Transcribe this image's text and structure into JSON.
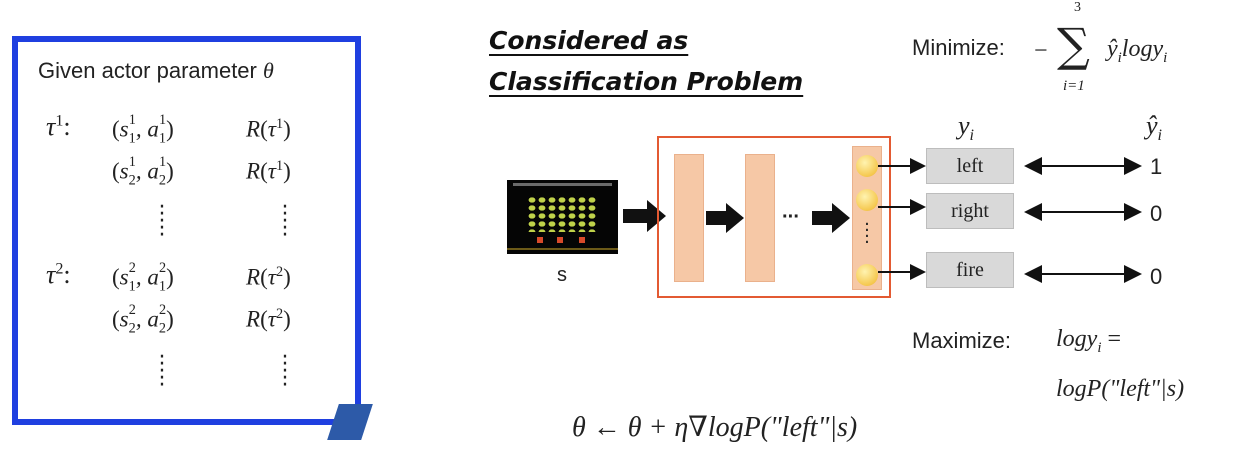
{
  "left_box": {
    "header": "Given actor parameter",
    "theta": "θ",
    "tau1": "τ",
    "tau1_sup": "1",
    "tau2": "τ",
    "tau2_sup": "2",
    "colon": ":",
    "rows": [
      {
        "pair": "(s",
        "return": "R(τ"
      },
      {
        "pair": "(s",
        "return": "R(τ"
      }
    ]
  },
  "title": {
    "line1": "Considered as",
    "line2": "Classification Problem"
  },
  "minimize": {
    "label": "Minimize:",
    "minus": "−",
    "sum": "∑",
    "upper": "3",
    "lower": "i=1",
    "term": "ŷ",
    "term_i": "i",
    "log": "logy",
    "log_i": "i"
  },
  "input_label": "s",
  "ellipsis": "···",
  "columns": {
    "y": "y",
    "y_sub": "i",
    "yhat": "ŷ",
    "yhat_sub": "i"
  },
  "classes": [
    {
      "label": "left",
      "target": "1"
    },
    {
      "label": "right",
      "target": "0"
    },
    {
      "label": "fire",
      "target": "0"
    }
  ],
  "maximize": {
    "label": "Maximize:",
    "line1": "logy",
    "line1_sub": "i",
    "line1_eq": " =",
    "line2": "logP(\"left\"|s)"
  },
  "update_rule": "θ ← θ + η∇logP(\"left\"|s)",
  "colors": {
    "box_border": "#1f3fe0",
    "network_border": "#e35a32",
    "layer_fill": "#f6c8a6",
    "neuron": "#f5c84f",
    "class_fill": "#d9d9d9"
  }
}
